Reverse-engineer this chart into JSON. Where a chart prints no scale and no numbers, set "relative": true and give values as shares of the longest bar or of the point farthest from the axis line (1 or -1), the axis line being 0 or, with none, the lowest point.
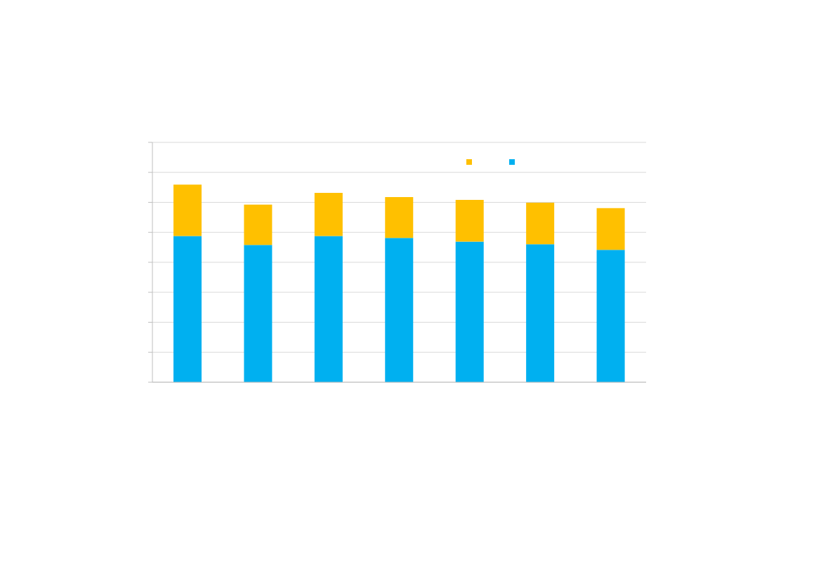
{
  "chart_data": {
    "type": "bar",
    "relative": true,
    "stacked": true,
    "categories": [
      null,
      null,
      null,
      null,
      null,
      null,
      null
    ],
    "series": [
      {
        "color": "#00b0f0",
        "values": [
          0.74,
          0.695,
          0.74,
          0.73,
          0.712,
          0.698,
          0.67
        ]
      },
      {
        "color": "#ffc000",
        "values": [
          0.26,
          0.204,
          0.218,
          0.207,
          0.211,
          0.211,
          0.211
        ]
      }
    ],
    "grid": "y"
  }
}
